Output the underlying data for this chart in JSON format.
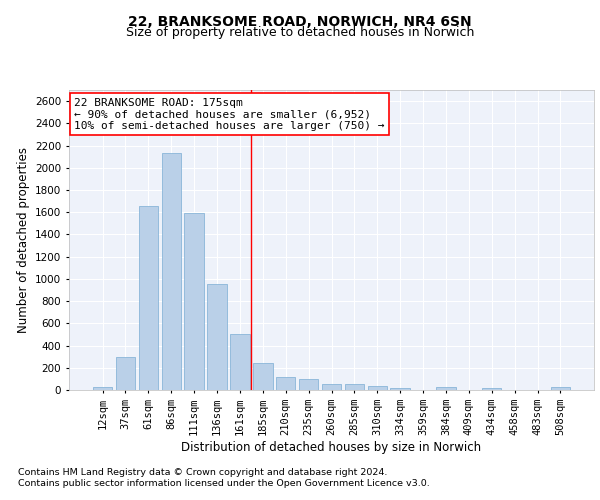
{
  "title1": "22, BRANKSOME ROAD, NORWICH, NR4 6SN",
  "title2": "Size of property relative to detached houses in Norwich",
  "xlabel": "Distribution of detached houses by size in Norwich",
  "ylabel": "Number of detached properties",
  "categories": [
    "12sqm",
    "37sqm",
    "61sqm",
    "86sqm",
    "111sqm",
    "136sqm",
    "161sqm",
    "185sqm",
    "210sqm",
    "235sqm",
    "260sqm",
    "285sqm",
    "310sqm",
    "334sqm",
    "359sqm",
    "384sqm",
    "409sqm",
    "434sqm",
    "458sqm",
    "483sqm",
    "508sqm"
  ],
  "values": [
    25,
    295,
    1660,
    2130,
    1590,
    955,
    500,
    245,
    120,
    100,
    50,
    50,
    35,
    20,
    0,
    25,
    0,
    20,
    0,
    0,
    25
  ],
  "bar_color": "#bad0e8",
  "bar_edge_color": "#7aadd4",
  "vline_color": "red",
  "annotation_line1": "22 BRANKSOME ROAD: 175sqm",
  "annotation_line2": "← 90% of detached houses are smaller (6,952)",
  "annotation_line3": "10% of semi-detached houses are larger (750) →",
  "annotation_box_color": "white",
  "annotation_box_edge_color": "red",
  "footnote1": "Contains HM Land Registry data © Crown copyright and database right 2024.",
  "footnote2": "Contains public sector information licensed under the Open Government Licence v3.0.",
  "background_color": "#eef2fa",
  "ylim": [
    0,
    2700
  ],
  "yticks": [
    0,
    200,
    400,
    600,
    800,
    1000,
    1200,
    1400,
    1600,
    1800,
    2000,
    2200,
    2400,
    2600
  ],
  "title1_fontsize": 10,
  "title2_fontsize": 9,
  "axis_label_fontsize": 8.5,
  "tick_fontsize": 7.5,
  "annotation_fontsize": 8,
  "footnote_fontsize": 6.8
}
